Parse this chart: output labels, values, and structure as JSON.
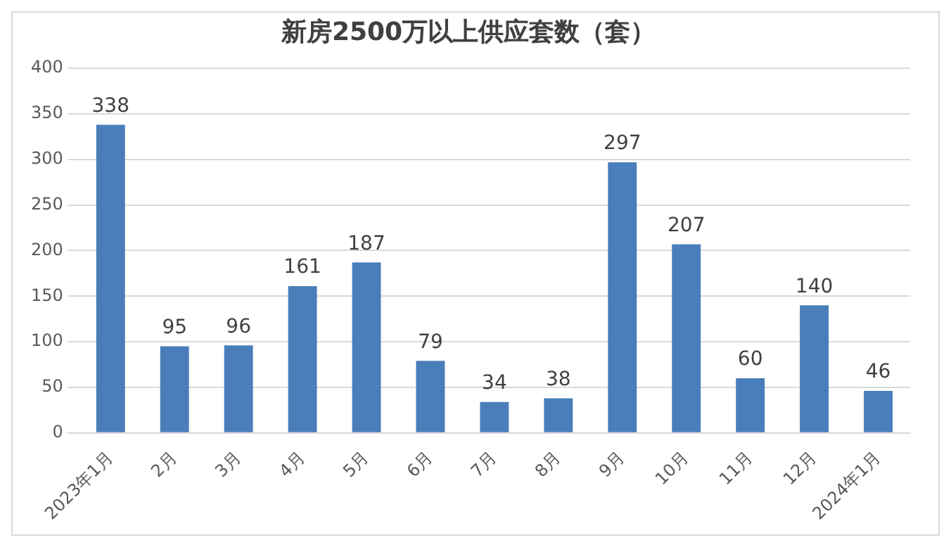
{
  "chart_data": {
    "type": "bar",
    "title": "新房2500万以上供应套数（套）",
    "categories": [
      "2023年1月",
      "2月",
      "3月",
      "4月",
      "5月",
      "6月",
      "7月",
      "8月",
      "9月",
      "10月",
      "11月",
      "12月",
      "2024年1月"
    ],
    "values": [
      338,
      95,
      96,
      161,
      187,
      79,
      34,
      38,
      297,
      207,
      60,
      140,
      46
    ],
    "color": "#4a7ebb",
    "ylim": [
      0,
      400
    ],
    "yticks": [
      0,
      50,
      100,
      150,
      200,
      250,
      300,
      350,
      400
    ],
    "grid": "y",
    "data_labels": true,
    "legend": false
  }
}
